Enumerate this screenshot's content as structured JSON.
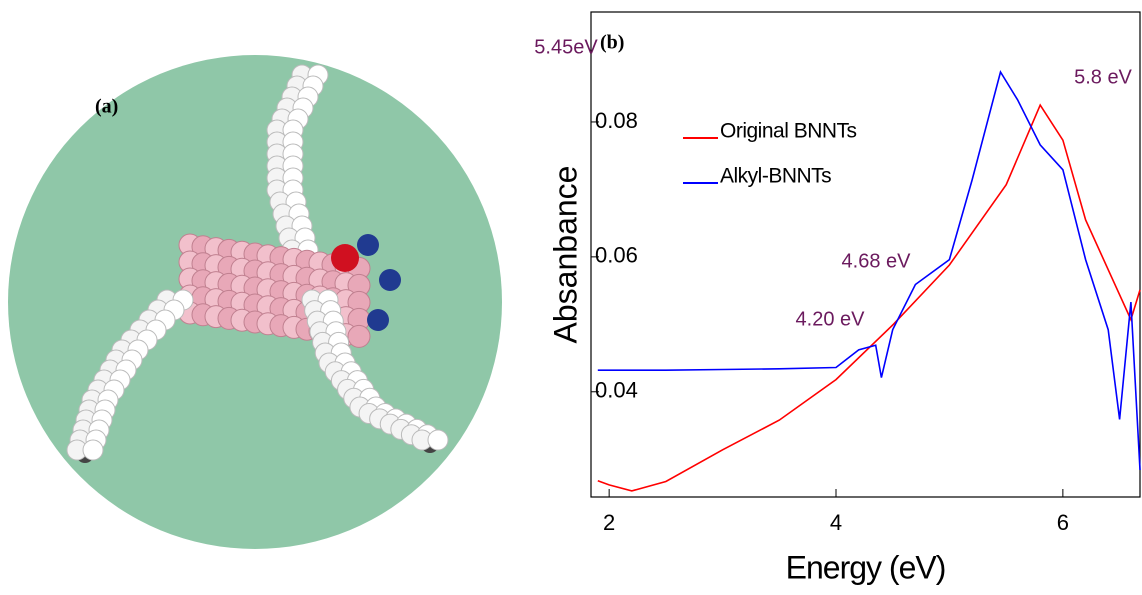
{
  "panel_a": {
    "label": "(a)"
  },
  "chart_data": {
    "type": "line",
    "panel_label": "(b)",
    "x_label": "Energy (eV)",
    "y_label": "Absanbance",
    "xlim": [
      1.84,
      6.68
    ],
    "ylim": [
      0.0244,
      0.0963
    ],
    "xticks": [
      2,
      4,
      6
    ],
    "yticks": [
      0.04,
      0.06,
      0.08
    ],
    "legend": "upper left",
    "series": [
      {
        "name": "Original BNNTs",
        "color": "#ff0000",
        "x": [
          1.9,
          2.0,
          2.2,
          2.5,
          3.0,
          3.5,
          4.0,
          4.5,
          5.0,
          5.5,
          5.8,
          6.0,
          6.2,
          6.4,
          6.6,
          6.68
        ],
        "values": [
          0.0268,
          0.0262,
          0.0253,
          0.0267,
          0.0314,
          0.0358,
          0.0418,
          0.0499,
          0.0588,
          0.0707,
          0.0825,
          0.0773,
          0.0655,
          0.0581,
          0.0507,
          0.0551
        ]
      },
      {
        "name": "Alkyl-BNNTs",
        "color": "#0000ff",
        "x": [
          1.9,
          2.5,
          3.0,
          3.5,
          4.0,
          4.2,
          4.35,
          4.4,
          4.5,
          4.7,
          5.0,
          5.2,
          5.45,
          5.6,
          5.8,
          6.0,
          6.2,
          6.4,
          6.5,
          6.6,
          6.68
        ],
        "values": [
          0.0432,
          0.0432,
          0.0433,
          0.0434,
          0.0436,
          0.0462,
          0.0469,
          0.0421,
          0.0492,
          0.0559,
          0.0596,
          0.0714,
          0.0874,
          0.0833,
          0.0766,
          0.0729,
          0.0596,
          0.0492,
          0.0359,
          0.0533,
          0.0284
        ]
      }
    ],
    "annotations": [
      "5.45eV",
      "5.8 eV",
      "4.68 eV",
      "4.20 eV"
    ]
  }
}
